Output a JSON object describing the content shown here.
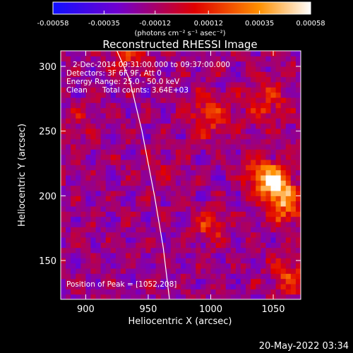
{
  "chart_data": {
    "type": "heatmap",
    "title": "Reconstructed RHESSI Image",
    "xlabel": "Heliocentric X (arcsec)",
    "ylabel": "Heliocentric Y (arcsec)",
    "xlim": [
      880,
      1072
    ],
    "ylim": [
      120,
      312
    ],
    "x_ticks": [
      900,
      950,
      1000,
      1050
    ],
    "y_ticks": [
      150,
      200,
      250,
      300
    ],
    "colorbar": {
      "range": [
        -0.00058,
        0.00058
      ],
      "tick_values": [
        -0.00058,
        -0.00035,
        -0.00012,
        0.00012,
        0.00035,
        0.00058
      ],
      "tick_labels": [
        "-0.00058",
        "-0.00035",
        "-0.00012",
        "0.00012",
        "0.00035",
        "0.00058"
      ],
      "unit_label": "(photons cm⁻² s⁻¹ asec⁻²)",
      "colors": [
        "#1010ff",
        "#7000d0",
        "#e00000",
        "#ff9000",
        "#ffffff"
      ]
    },
    "annotations": {
      "time_range": "2-Dec-2014 09:31:00.000 to 09:37:00.000",
      "detectors": "Detectors: 3F 6F 9F, Att 0",
      "energy_range": "Energy Range: 25.0 - 50.0 keV",
      "clean": "Clean",
      "total_counts": "Total counts: 3.64E+03",
      "peak": "Position of Peak = [1052,208]"
    },
    "peak_position": [
      1052,
      208
    ],
    "limb_curve": [
      [
        925,
        312
      ],
      [
        935,
        290
      ],
      [
        945,
        250
      ],
      [
        955,
        200
      ],
      [
        962,
        160
      ],
      [
        967,
        120
      ]
    ],
    "sources": [
      {
        "x": 1052,
        "y": 208,
        "amp": 0.00058,
        "sigma": 10
      },
      {
        "x": 1040,
        "y": 218,
        "amp": 0.00034,
        "sigma": 9
      },
      {
        "x": 1060,
        "y": 190,
        "amp": 0.0003,
        "sigma": 10
      },
      {
        "x": 1000,
        "y": 262,
        "amp": 0.00028,
        "sigma": 12
      },
      {
        "x": 1045,
        "y": 272,
        "amp": 0.00024,
        "sigma": 12
      },
      {
        "x": 935,
        "y": 310,
        "amp": 0.00032,
        "sigma": 9
      },
      {
        "x": 1000,
        "y": 178,
        "amp": 0.0003,
        "sigma": 8
      },
      {
        "x": 1062,
        "y": 138,
        "amp": 0.00028,
        "sigma": 10
      },
      {
        "x": 962,
        "y": 218,
        "amp": 0.00014,
        "sigma": 10
      },
      {
        "x": 895,
        "y": 255,
        "amp": 0.00012,
        "sigma": 10
      }
    ]
  },
  "footer": {
    "timestamp": "20-May-2022 03:34"
  }
}
